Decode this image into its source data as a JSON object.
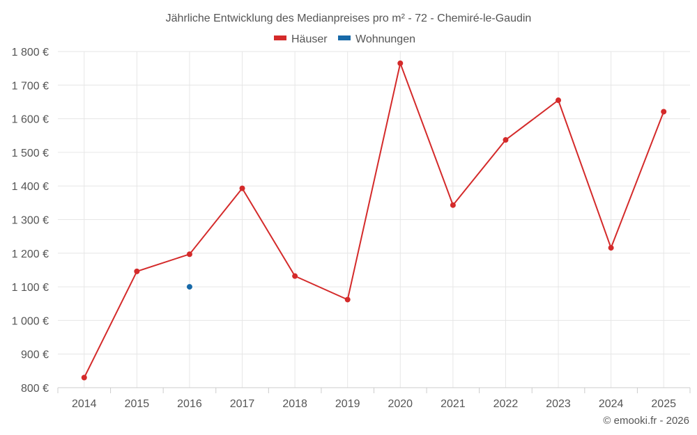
{
  "chart_data": {
    "type": "line",
    "title": "Jährliche Entwicklung des Medianpreises pro m² - 72 - Chemiré-le-Gaudin",
    "x": [
      "2014",
      "2015",
      "2016",
      "2017",
      "2018",
      "2019",
      "2020",
      "2021",
      "2022",
      "2023",
      "2024",
      "2025"
    ],
    "series": [
      {
        "name": "Häuser",
        "color": "#d42a2a",
        "values": [
          830,
          1146,
          1197,
          1393,
          1132,
          1062,
          1765,
          1343,
          1537,
          1655,
          1216,
          1621
        ]
      },
      {
        "name": "Wohnungen",
        "color": "#1769a8",
        "values": [
          null,
          null,
          1100,
          null,
          null,
          null,
          null,
          null,
          null,
          null,
          null,
          null
        ]
      }
    ],
    "yticks": [
      "800 €",
      "900 €",
      "1 000 €",
      "1 100 €",
      "1 200 €",
      "1 300 €",
      "1 400 €",
      "1 500 €",
      "1 600 €",
      "1 700 €",
      "1 800 €"
    ],
    "ylim": [
      800,
      1800
    ],
    "grid": true,
    "legend_position": "top-center",
    "credit": "© emooki.fr - 2026"
  }
}
